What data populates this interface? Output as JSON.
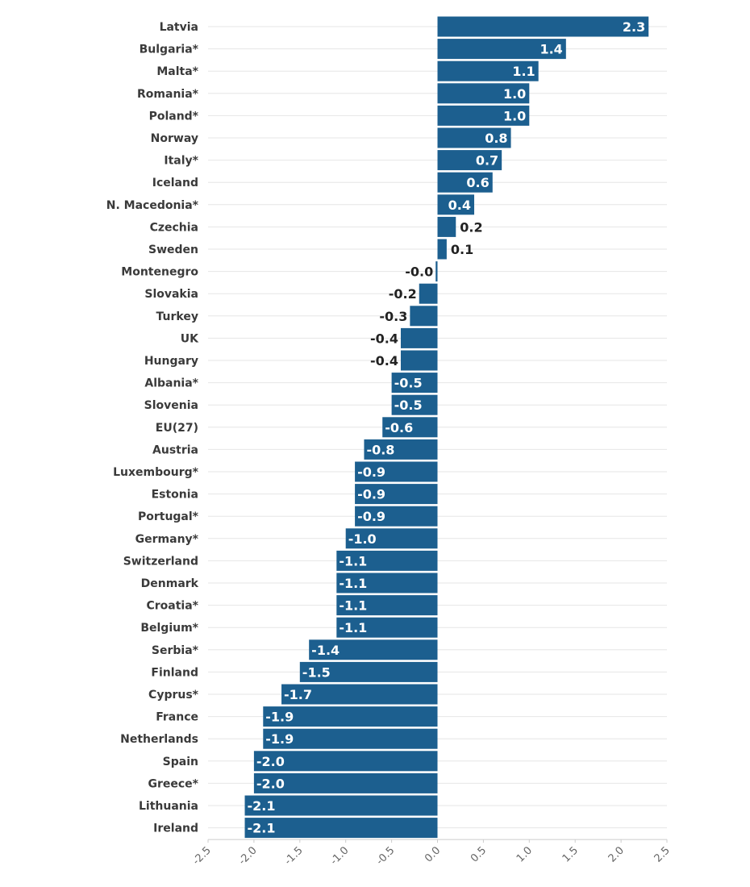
{
  "chart_data": {
    "type": "bar",
    "orientation": "horizontal",
    "title": "",
    "xlabel": "",
    "ylabel": "",
    "xlim": [
      -2.5,
      2.5
    ],
    "grid": true,
    "legend": "none",
    "categories": [
      "Latvia",
      "Bulgaria*",
      "Malta*",
      "Romania*",
      "Poland*",
      "Norway",
      "Italy*",
      "Iceland",
      "N. Macedonia*",
      "Czechia",
      "Sweden",
      "Montenegro",
      "Slovakia",
      "Turkey",
      "UK",
      "Hungary",
      "Albania*",
      "Slovenia",
      "EU(27)",
      "Austria",
      "Luxembourg*",
      "Estonia",
      "Portugal*",
      "Germany*",
      "Switzerland",
      "Denmark",
      "Croatia*",
      "Belgium*",
      "Serbia*",
      "Finland",
      "Cyprus*",
      "France",
      "Netherlands",
      "Spain",
      "Greece*",
      "Lithuania",
      "Ireland"
    ],
    "values": [
      2.3,
      1.4,
      1.1,
      1.0,
      1.0,
      0.8,
      0.7,
      0.6,
      0.4,
      0.2,
      0.1,
      -0.02,
      -0.2,
      -0.3,
      -0.4,
      -0.4,
      -0.5,
      -0.5,
      -0.6,
      -0.8,
      -0.9,
      -0.9,
      -0.9,
      -1.0,
      -1.1,
      -1.1,
      -1.1,
      -1.1,
      -1.4,
      -1.5,
      -1.7,
      -1.9,
      -1.9,
      -2.0,
      -2.0,
      -2.1,
      -2.1
    ],
    "value_labels": [
      "2.3",
      "1.4",
      "1.1",
      "1.0",
      "1.0",
      "0.8",
      "0.7",
      "0.6",
      "0.4",
      "0.2",
      "0.1",
      "-0.0",
      "-0.2",
      "-0.3",
      "-0.4",
      "-0.4",
      "-0.5",
      "-0.5",
      "-0.6",
      "-0.8",
      "-0.9",
      "-0.9",
      "-0.9",
      "-1.0",
      "-1.1",
      "-1.1",
      "-1.1",
      "-1.1",
      "-1.4",
      "-1.5",
      "-1.7",
      "-1.9",
      "-1.9",
      "-2.0",
      "-2.0",
      "-2.1",
      "-2.1"
    ],
    "x_ticks": [
      -2.5,
      -2.0,
      -1.5,
      -1.0,
      -0.5,
      0.0,
      0.5,
      1.0,
      1.5,
      2.0,
      2.5
    ],
    "x_tick_labels": [
      "-2.5",
      "-2.0",
      "-1.5",
      "-1.0",
      "-0.5",
      "0.0",
      "0.5",
      "1.0",
      "1.5",
      "2.0",
      "2.5"
    ],
    "colors": {
      "bar": "#1c5f8f",
      "label_inside": "#ffffff",
      "label_outside": "#222222",
      "grid": "#e6e6e6",
      "axis": "#cccccc"
    }
  }
}
